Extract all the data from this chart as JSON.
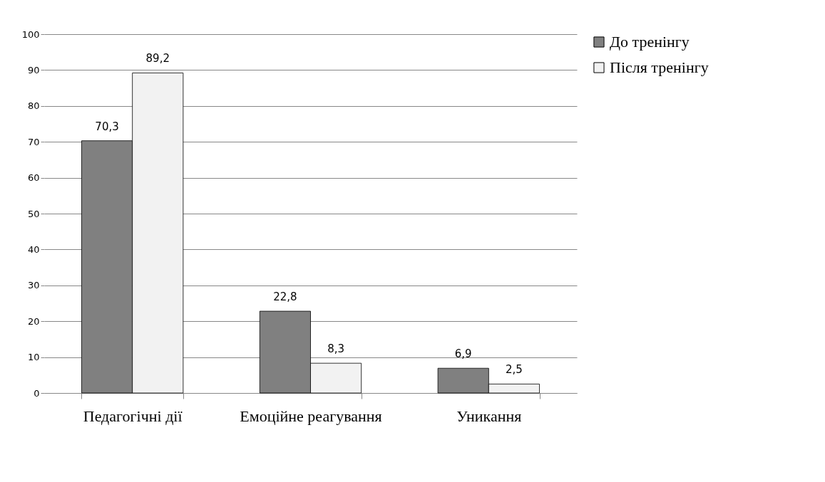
{
  "chart_data": {
    "type": "bar",
    "categories": [
      "Педагогічні дії",
      "Емоційне реагування",
      "Уникання"
    ],
    "series": [
      {
        "name": "До тренінгу",
        "color": "#808080",
        "values": [
          70.3,
          22.8,
          6.9
        ],
        "value_labels": [
          "70,3",
          "22,8",
          "6,9"
        ]
      },
      {
        "name": "Після тренінгу",
        "color": "#f2f2f2",
        "values": [
          89.2,
          8.3,
          2.5
        ],
        "value_labels": [
          "89,2",
          "8,3",
          "2,5"
        ]
      }
    ],
    "ylim": [
      0,
      100
    ],
    "yticks": [
      0,
      10,
      20,
      30,
      40,
      50,
      60,
      70,
      80,
      90,
      100
    ],
    "grid": "y",
    "legend": "right"
  }
}
